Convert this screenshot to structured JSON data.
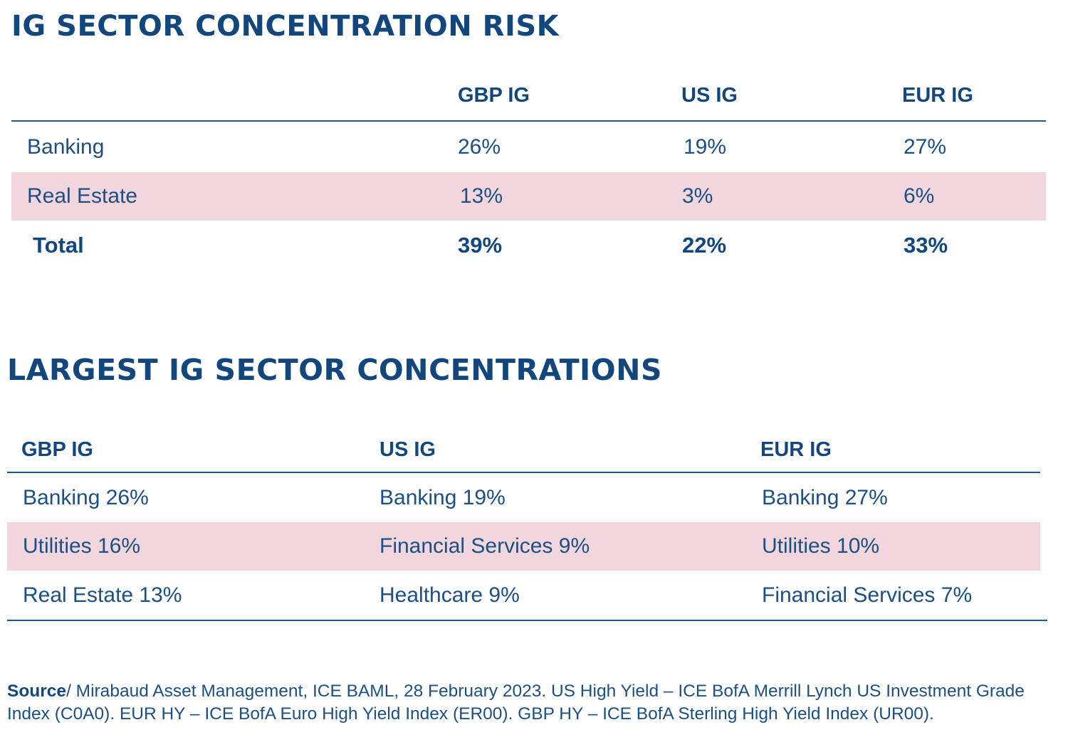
{
  "table1": {
    "title": "IG SECTOR CONCENTRATION RISK",
    "columns": [
      "GBP IG",
      "US IG",
      "EUR IG"
    ],
    "rows": [
      {
        "label": "Banking",
        "values": [
          "26%",
          "19%",
          "27%"
        ]
      },
      {
        "label": "Real Estate",
        "values": [
          "13%",
          "3%",
          "6%"
        ]
      },
      {
        "label": "Total",
        "values": [
          "39%",
          "22%",
          "33%"
        ]
      }
    ],
    "highlight_color": "#f2d6dd"
  },
  "table2": {
    "title": "LARGEST IG SECTOR CONCENTRATIONS",
    "columns": [
      "GBP IG",
      "US IG",
      "EUR IG"
    ],
    "rows": [
      [
        "Banking 26%",
        "Banking 19%",
        "Banking 27%"
      ],
      [
        "Utilities 16%",
        "Financial Services 9%",
        "Utilities 10%"
      ],
      [
        "Real Estate 13%",
        "Healthcare 9%",
        "Financial Services 7%"
      ]
    ]
  },
  "source": {
    "label": "Source",
    "text": "/ Mirabaud Asset Management, ICE BAML, 28 February 2023. US High Yield – ICE BofA Merrill Lynch US Investment Grade Index (C0A0). EUR HY – ICE BofA Euro High Yield Index (ER00). GBP HY – ICE BofA Sterling High Yield Index (UR00)."
  },
  "colors": {
    "accent": "#12477e",
    "rule": "#1f5a8e",
    "highlight": "#f2d6dd"
  }
}
